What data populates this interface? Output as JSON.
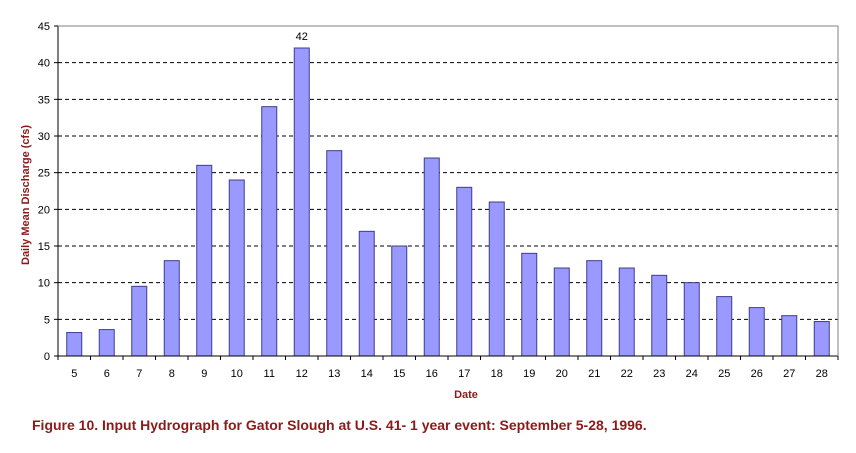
{
  "caption": "Figure 10. Input Hydrograph for Gator Slough at U.S. 41- 1 year event: September 5-28, 1996.",
  "colors": {
    "bar_fill": "#9999ff",
    "bar_stroke": "#3d3d8f",
    "axis_title": "#8b1a1a",
    "caption": "#8b1a1a"
  },
  "chart_data": {
    "type": "bar",
    "categories": [
      "5",
      "6",
      "7",
      "8",
      "9",
      "10",
      "11",
      "12",
      "13",
      "14",
      "15",
      "16",
      "17",
      "18",
      "19",
      "20",
      "21",
      "22",
      "23",
      "24",
      "25",
      "26",
      "27",
      "28"
    ],
    "values": [
      3.2,
      3.6,
      9.5,
      13,
      26,
      24,
      34,
      42,
      28,
      17,
      15,
      27,
      23,
      21,
      14,
      12,
      13,
      12,
      11,
      10,
      8.1,
      6.6,
      5.5,
      4.7
    ],
    "data_labels": [
      {
        "category": "12",
        "text": "42"
      }
    ],
    "xlabel": "Date",
    "ylabel": "Daily Mean Discharge (cfs)",
    "ylim": [
      0,
      45
    ],
    "yticks": [
      "0",
      "5",
      "10",
      "15",
      "20",
      "25",
      "30",
      "35",
      "40",
      "45"
    ],
    "grid": "horizontal dashed"
  }
}
